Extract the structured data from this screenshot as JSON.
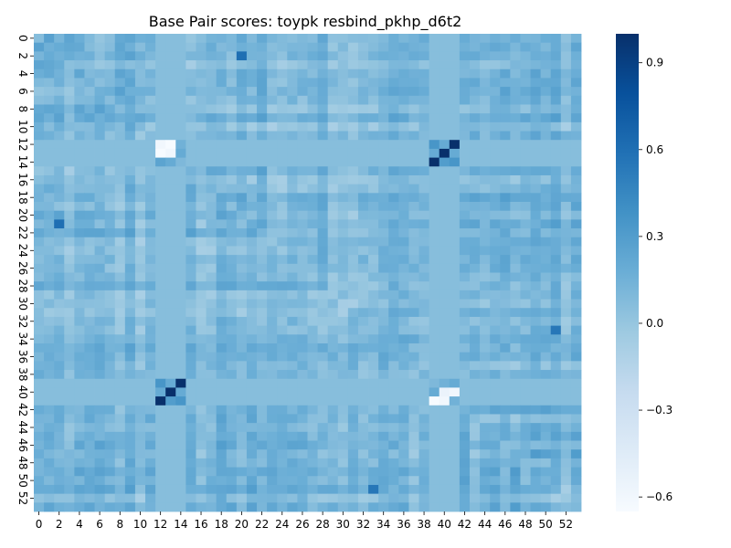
{
  "chart_data": {
    "type": "heatmap",
    "title": "Base Pair scores: toypk resbind_pkhp_d6t2",
    "xlabel": "",
    "ylabel": "",
    "n_rows": 54,
    "n_cols": 54,
    "x_tick_labels": [
      "0",
      "2",
      "4",
      "6",
      "8",
      "10",
      "12",
      "14",
      "16",
      "18",
      "20",
      "22",
      "24",
      "26",
      "28",
      "30",
      "32",
      "34",
      "36",
      "38",
      "40",
      "42",
      "44",
      "46",
      "48",
      "50",
      "52"
    ],
    "y_tick_labels": [
      "0",
      "2",
      "4",
      "6",
      "8",
      "10",
      "12",
      "14",
      "16",
      "18",
      "20",
      "22",
      "24",
      "26",
      "28",
      "30",
      "32",
      "34",
      "36",
      "38",
      "40",
      "42",
      "44",
      "46",
      "48",
      "50",
      "52"
    ],
    "colormap": "Blues",
    "vmin": -0.65,
    "vmax": 1.0,
    "colorbar_ticks": [
      0.9,
      0.6,
      0.3,
      0.0,
      -0.3,
      -0.6
    ],
    "colorbar_tick_labels": [
      "0.9",
      "0.6",
      "0.3",
      "0.0",
      "−0.3",
      "−0.6"
    ],
    "background_value": 0.1,
    "uniform_value": 0.06,
    "uniform_rows": [
      12,
      13,
      14,
      39,
      40,
      41
    ],
    "uniform_cols": [
      12,
      13,
      14,
      39,
      40,
      41
    ],
    "pair_blocks": [
      {
        "rows": [
          12,
          13,
          14
        ],
        "cols": [
          12,
          13,
          14
        ],
        "values": [
          [
            -0.6,
            -0.65,
            0.15
          ],
          [
            -0.65,
            -0.6,
            0.2
          ],
          [
            0.25,
            0.2,
            0.1
          ]
        ]
      },
      {
        "rows": [
          12,
          13,
          14
        ],
        "cols": [
          39,
          40,
          41
        ],
        "values": [
          [
            0.35,
            0.2,
            1.0
          ],
          [
            0.2,
            1.0,
            0.2
          ],
          [
            1.0,
            0.3,
            0.35
          ]
        ]
      },
      {
        "rows": [
          39,
          40,
          41
        ],
        "cols": [
          12,
          13,
          14
        ],
        "values": [
          [
            0.35,
            0.2,
            1.0
          ],
          [
            0.2,
            1.0,
            0.2
          ],
          [
            1.0,
            0.3,
            0.35
          ]
        ]
      },
      {
        "rows": [
          39,
          40,
          41
        ],
        "cols": [
          39,
          40,
          41
        ],
        "values": [
          [
            0.1,
            0.15,
            0.2
          ],
          [
            0.2,
            -0.55,
            -0.6
          ],
          [
            -0.65,
            -0.6,
            0.15
          ]
        ]
      }
    ],
    "notable_cells": [
      {
        "row": 2,
        "col": 20,
        "value": 0.6
      },
      {
        "row": 21,
        "col": 2,
        "value": 0.6
      },
      {
        "row": 33,
        "col": 51,
        "value": 0.55
      },
      {
        "row": 51,
        "col": 33,
        "value": 0.55
      }
    ],
    "variation_range": [
      -0.25,
      0.4
    ]
  }
}
